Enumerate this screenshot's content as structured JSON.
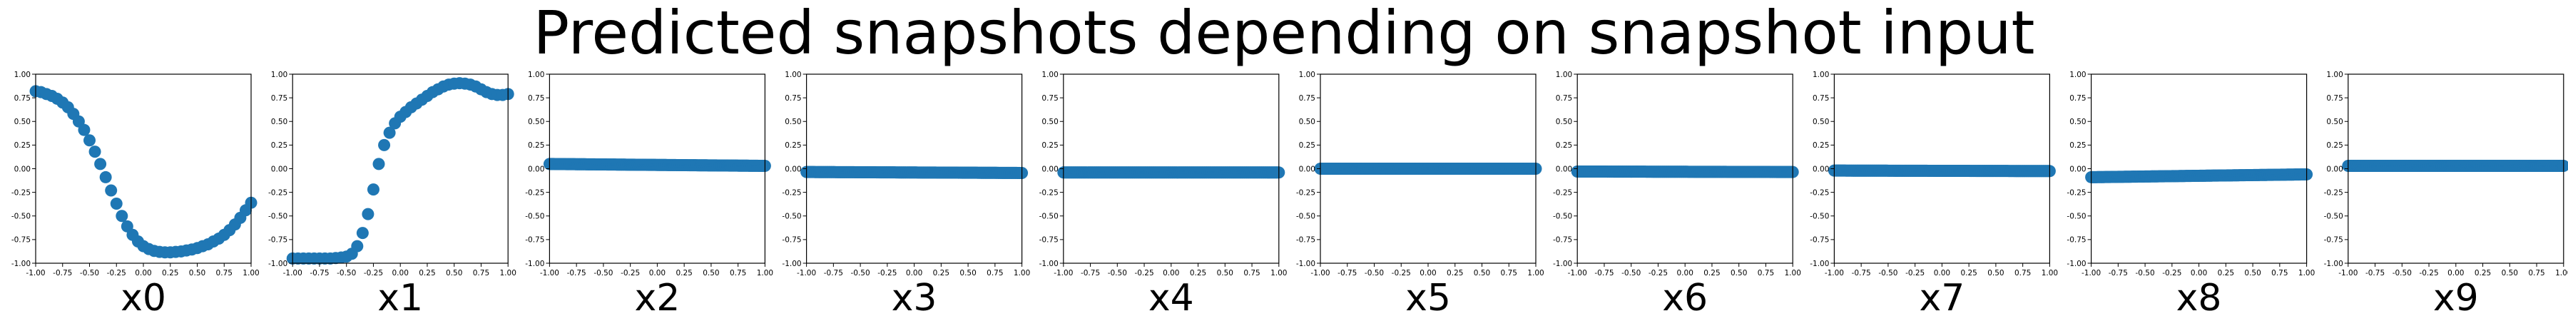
{
  "figure": {
    "title": "Predicted snapshots depending on snapshot input"
  },
  "colors": {
    "marker": "#1f77b4",
    "axis": "#000000"
  },
  "chart_data": [
    {
      "type": "scatter",
      "xlabel": "x0",
      "xlim": [
        -1,
        1
      ],
      "ylim": [
        -1,
        1
      ],
      "xticks": [
        "-1.00",
        "-0.75",
        "-0.50",
        "-0.25",
        "0.00",
        "0.25",
        "0.50",
        "0.75",
        "1.00"
      ],
      "yticks": [
        "-1.00",
        "-0.75",
        "-0.50",
        "-0.25",
        "0.00",
        "0.25",
        "0.50",
        "0.75",
        "1.00"
      ],
      "grid": false,
      "points": [
        [
          -1.0,
          0.82
        ],
        [
          -0.95,
          0.81
        ],
        [
          -0.9,
          0.79
        ],
        [
          -0.85,
          0.77
        ],
        [
          -0.8,
          0.74
        ],
        [
          -0.75,
          0.7
        ],
        [
          -0.7,
          0.65
        ],
        [
          -0.65,
          0.58
        ],
        [
          -0.6,
          0.5
        ],
        [
          -0.55,
          0.41
        ],
        [
          -0.5,
          0.3
        ],
        [
          -0.45,
          0.18
        ],
        [
          -0.4,
          0.05
        ],
        [
          -0.35,
          -0.09
        ],
        [
          -0.3,
          -0.23
        ],
        [
          -0.25,
          -0.37
        ],
        [
          -0.2,
          -0.5
        ],
        [
          -0.15,
          -0.61
        ],
        [
          -0.1,
          -0.7
        ],
        [
          -0.05,
          -0.77
        ],
        [
          0.0,
          -0.82
        ],
        [
          0.05,
          -0.85
        ],
        [
          0.1,
          -0.87
        ],
        [
          0.15,
          -0.88
        ],
        [
          0.2,
          -0.885
        ],
        [
          0.25,
          -0.885
        ],
        [
          0.3,
          -0.88
        ],
        [
          0.35,
          -0.875
        ],
        [
          0.4,
          -0.865
        ],
        [
          0.45,
          -0.855
        ],
        [
          0.5,
          -0.84
        ],
        [
          0.55,
          -0.82
        ],
        [
          0.6,
          -0.8
        ],
        [
          0.65,
          -0.77
        ],
        [
          0.7,
          -0.74
        ],
        [
          0.75,
          -0.7
        ],
        [
          0.8,
          -0.65
        ],
        [
          0.85,
          -0.59
        ],
        [
          0.9,
          -0.52
        ],
        [
          0.95,
          -0.44
        ],
        [
          1.0,
          -0.36
        ]
      ]
    },
    {
      "type": "scatter",
      "xlabel": "x1",
      "xlim": [
        -1,
        1
      ],
      "ylim": [
        -1,
        1
      ],
      "xticks": [
        "-1.00",
        "-0.75",
        "-0.50",
        "-0.25",
        "0.00",
        "0.25",
        "0.50",
        "0.75",
        "1.00"
      ],
      "yticks": [
        "-1.00",
        "-0.75",
        "-0.50",
        "-0.25",
        "0.00",
        "0.25",
        "0.50",
        "0.75",
        "1.00"
      ],
      "grid": false,
      "points": [
        [
          -1.0,
          -0.95
        ],
        [
          -0.95,
          -0.95
        ],
        [
          -0.9,
          -0.95
        ],
        [
          -0.85,
          -0.95
        ],
        [
          -0.8,
          -0.95
        ],
        [
          -0.75,
          -0.95
        ],
        [
          -0.7,
          -0.95
        ],
        [
          -0.65,
          -0.95
        ],
        [
          -0.6,
          -0.945
        ],
        [
          -0.55,
          -0.94
        ],
        [
          -0.5,
          -0.93
        ],
        [
          -0.45,
          -0.9
        ],
        [
          -0.4,
          -0.82
        ],
        [
          -0.35,
          -0.68
        ],
        [
          -0.3,
          -0.48
        ],
        [
          -0.25,
          -0.22
        ],
        [
          -0.2,
          0.05
        ],
        [
          -0.15,
          0.25
        ],
        [
          -0.1,
          0.38
        ],
        [
          -0.05,
          0.48
        ],
        [
          0.0,
          0.55
        ],
        [
          0.05,
          0.6
        ],
        [
          0.1,
          0.65
        ],
        [
          0.15,
          0.69
        ],
        [
          0.2,
          0.73
        ],
        [
          0.25,
          0.77
        ],
        [
          0.3,
          0.81
        ],
        [
          0.35,
          0.84
        ],
        [
          0.4,
          0.87
        ],
        [
          0.45,
          0.89
        ],
        [
          0.5,
          0.9
        ],
        [
          0.55,
          0.905
        ],
        [
          0.6,
          0.9
        ],
        [
          0.65,
          0.89
        ],
        [
          0.7,
          0.87
        ],
        [
          0.75,
          0.84
        ],
        [
          0.8,
          0.81
        ],
        [
          0.85,
          0.79
        ],
        [
          0.9,
          0.78
        ],
        [
          0.95,
          0.78
        ],
        [
          1.0,
          0.79
        ]
      ]
    },
    {
      "type": "scatter",
      "xlabel": "x2",
      "xlim": [
        -1,
        1
      ],
      "ylim": [
        -1,
        1
      ],
      "xticks": [
        "-1.00",
        "-0.75",
        "-0.50",
        "-0.25",
        "0.00",
        "0.25",
        "0.50",
        "0.75",
        "1.00"
      ],
      "yticks": [
        "-1.00",
        "-0.75",
        "-0.50",
        "-0.25",
        "0.00",
        "0.25",
        "0.50",
        "0.75",
        "1.00"
      ],
      "grid": false,
      "constant_series": {
        "x_start": -1.0,
        "x_end": 1.0,
        "step": 0.01,
        "y_left": 0.05,
        "y_right": 0.03
      }
    },
    {
      "type": "scatter",
      "xlabel": "x3",
      "xlim": [
        -1,
        1
      ],
      "ylim": [
        -1,
        1
      ],
      "xticks": [
        "-1.00",
        "-0.75",
        "-0.50",
        "-0.25",
        "0.00",
        "0.25",
        "0.50",
        "0.75",
        "1.00"
      ],
      "yticks": [
        "-1.00",
        "-0.75",
        "-0.50",
        "-0.25",
        "0.00",
        "0.25",
        "0.50",
        "0.75",
        "1.00"
      ],
      "grid": false,
      "constant_series": {
        "x_start": -1.0,
        "x_end": 1.0,
        "step": 0.01,
        "y_left": -0.035,
        "y_right": -0.045
      }
    },
    {
      "type": "scatter",
      "xlabel": "x4",
      "xlim": [
        -1,
        1
      ],
      "ylim": [
        -1,
        1
      ],
      "xticks": [
        "-1.00",
        "-0.75",
        "-0.50",
        "-0.25",
        "0.00",
        "0.25",
        "0.50",
        "0.75",
        "1.00"
      ],
      "yticks": [
        "-1.00",
        "-0.75",
        "-0.50",
        "-0.25",
        "0.00",
        "0.25",
        "0.50",
        "0.75",
        "1.00"
      ],
      "grid": false,
      "constant_series": {
        "x_start": -1.0,
        "x_end": 1.0,
        "step": 0.01,
        "y_left": -0.04,
        "y_right": -0.04
      }
    },
    {
      "type": "scatter",
      "xlabel": "x5",
      "xlim": [
        -1,
        1
      ],
      "ylim": [
        -1,
        1
      ],
      "xticks": [
        "-1.00",
        "-0.75",
        "-0.50",
        "-0.25",
        "0.00",
        "0.25",
        "0.50",
        "0.75",
        "1.00"
      ],
      "yticks": [
        "-1.00",
        "-0.75",
        "-0.50",
        "-0.25",
        "0.00",
        "0.25",
        "0.50",
        "0.75",
        "1.00"
      ],
      "grid": false,
      "constant_series": {
        "x_start": -1.0,
        "x_end": 1.0,
        "step": 0.01,
        "y_left": 0.0,
        "y_right": 0.0
      }
    },
    {
      "type": "scatter",
      "xlabel": "x6",
      "xlim": [
        -1,
        1
      ],
      "ylim": [
        -1,
        1
      ],
      "xticks": [
        "-1.00",
        "-0.75",
        "-0.50",
        "-0.25",
        "0.00",
        "0.25",
        "0.50",
        "0.75",
        "1.00"
      ],
      "yticks": [
        "-1.00",
        "-0.75",
        "-0.50",
        "-0.25",
        "0.00",
        "0.25",
        "0.50",
        "0.75",
        "1.00"
      ],
      "grid": false,
      "constant_series": {
        "x_start": -1.0,
        "x_end": 1.0,
        "step": 0.01,
        "y_left": -0.03,
        "y_right": -0.035
      }
    },
    {
      "type": "scatter",
      "xlabel": "x7",
      "xlim": [
        -1,
        1
      ],
      "ylim": [
        -1,
        1
      ],
      "xticks": [
        "-1.00",
        "-0.75",
        "-0.50",
        "-0.25",
        "0.00",
        "0.25",
        "0.50",
        "0.75",
        "1.00"
      ],
      "yticks": [
        "-1.00",
        "-0.75",
        "-0.50",
        "-0.25",
        "0.00",
        "0.25",
        "0.50",
        "0.75",
        "1.00"
      ],
      "grid": false,
      "constant_series": {
        "x_start": -1.0,
        "x_end": 1.0,
        "step": 0.01,
        "y_left": -0.02,
        "y_right": -0.025
      }
    },
    {
      "type": "scatter",
      "xlabel": "x8",
      "xlim": [
        -1,
        1
      ],
      "ylim": [
        -1,
        1
      ],
      "xticks": [
        "-1.00",
        "-0.75",
        "-0.50",
        "-0.25",
        "0.00",
        "0.25",
        "0.50",
        "0.75",
        "1.00"
      ],
      "yticks": [
        "-1.00",
        "-0.75",
        "-0.50",
        "-0.25",
        "0.00",
        "0.25",
        "0.50",
        "0.75",
        "1.00"
      ],
      "grid": false,
      "constant_series": {
        "x_start": -1.0,
        "x_end": 1.0,
        "step": 0.01,
        "y_left": -0.09,
        "y_right": -0.06
      }
    },
    {
      "type": "scatter",
      "xlabel": "x9",
      "xlim": [
        -1,
        1
      ],
      "ylim": [
        -1,
        1
      ],
      "xticks": [
        "-1.00",
        "-0.75",
        "-0.50",
        "-0.25",
        "0.00",
        "0.25",
        "0.50",
        "0.75",
        "1.00"
      ],
      "yticks": [
        "-1.00",
        "-0.75",
        "-0.50",
        "-0.25",
        "0.00",
        "0.25",
        "0.50",
        "0.75",
        "1.00"
      ],
      "grid": false,
      "constant_series": {
        "x_start": -1.0,
        "x_end": 1.0,
        "step": 0.01,
        "y_left": 0.03,
        "y_right": 0.03
      }
    }
  ]
}
